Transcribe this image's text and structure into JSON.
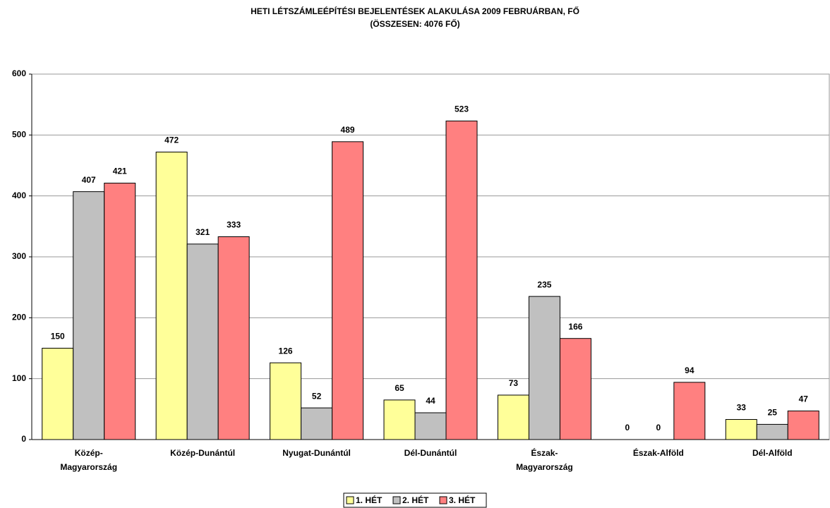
{
  "chart_data": {
    "type": "bar",
    "title": "HETI LÉTSZÁMLEÉPÍTÉSI BEJELENTÉSEK ALAKULÁSA 2009 FEBRUÁRBAN, FŐ",
    "subtitle": "(ÖSSZESEN: 4076 FŐ)",
    "categories": [
      [
        "Közép-",
        "Magyarország"
      ],
      [
        "Közép-Dunántúl"
      ],
      [
        "Nyugat-Dunántúl"
      ],
      [
        "Dél-Dunántúl"
      ],
      [
        "Észak-",
        "Magyarország"
      ],
      [
        "Észak-Alföld"
      ],
      [
        "Dél-Alföld"
      ]
    ],
    "series": [
      {
        "name": "1. HÉT",
        "color": "#ffff99",
        "values": [
          150,
          472,
          126,
          65,
          73,
          0,
          33
        ]
      },
      {
        "name": "2. HÉT",
        "color": "#c0c0c0",
        "values": [
          407,
          321,
          52,
          44,
          235,
          0,
          25
        ]
      },
      {
        "name": "3. HÉT",
        "color": "#ff8080",
        "values": [
          421,
          333,
          489,
          523,
          166,
          94,
          47
        ]
      }
    ],
    "ylim": [
      0,
      600
    ],
    "yticks": [
      0,
      100,
      200,
      300,
      400,
      500,
      600
    ],
    "grid": true,
    "legend": "bottom"
  }
}
